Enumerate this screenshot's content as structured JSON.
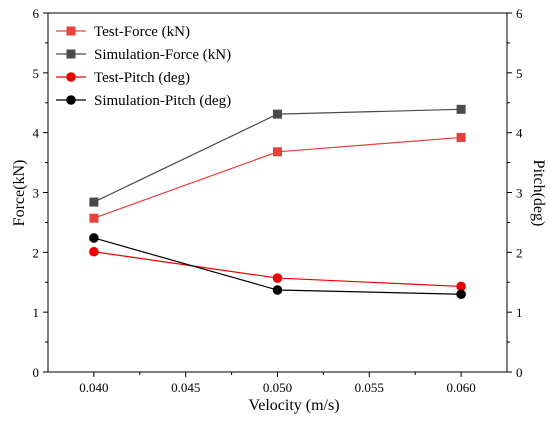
{
  "chart_data": {
    "type": "line",
    "title": "",
    "xlabel": "Velocity (m/s)",
    "ylabel": "Force(kN)",
    "y2label": "Pitch(deg)",
    "x": [
      0.04,
      0.05,
      0.06
    ],
    "xlim": [
      0.0375,
      0.0625
    ],
    "xticks": [
      "0.040",
      "0.045",
      "0.050",
      "0.055",
      "0.060"
    ],
    "xtick_values": [
      0.04,
      0.045,
      0.05,
      0.055,
      0.06
    ],
    "ylim": [
      0,
      6
    ],
    "yticks": [
      "0",
      "1",
      "2",
      "3",
      "4",
      "5",
      "6"
    ],
    "y2lim": [
      0,
      6
    ],
    "y2ticks": [
      "0",
      "1",
      "2",
      "3",
      "4",
      "5",
      "6"
    ],
    "grid": false,
    "legend_position": "top-left",
    "series": [
      {
        "name": "Test-Force (kN)",
        "values": [
          2.57,
          3.68,
          3.92
        ],
        "color": "#e8403a",
        "marker": "square",
        "axis": "left"
      },
      {
        "name": "Simulation-Force (kN)",
        "values": [
          2.84,
          4.31,
          4.39
        ],
        "color": "#4a4a4a",
        "marker": "square",
        "axis": "left"
      },
      {
        "name": "Test-Pitch (deg)",
        "values": [
          2.01,
          1.57,
          1.43
        ],
        "color": "#ee0000",
        "marker": "circle",
        "axis": "right"
      },
      {
        "name": "Simulation-Pitch (deg)",
        "values": [
          2.24,
          1.37,
          1.3
        ],
        "color": "#000000",
        "marker": "circle",
        "axis": "right"
      }
    ]
  }
}
